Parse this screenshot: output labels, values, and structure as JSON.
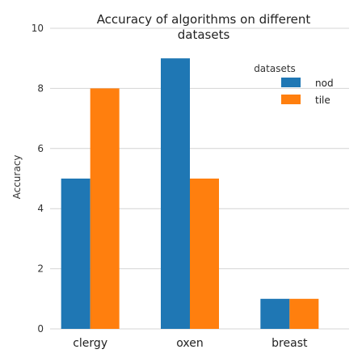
{
  "chart_data": {
    "type": "bar",
    "title_line1": "Accuracy of algorithms on different",
    "title_line2": "datasets",
    "ylabel": "Accuracy",
    "categories": [
      "clergy",
      "oxen",
      "breast"
    ],
    "series": [
      {
        "name": "nod",
        "values": [
          5,
          9,
          1
        ],
        "color": "#1f77b4"
      },
      {
        "name": "tile",
        "values": [
          8,
          5,
          1
        ],
        "color": "#ff7f0e"
      }
    ],
    "ylim": [
      0,
      10
    ],
    "yticks": [
      "0",
      "2",
      "4",
      "6",
      "8",
      "10"
    ],
    "grid": true,
    "legend": {
      "title": "datasets",
      "placement": "top-right"
    }
  }
}
